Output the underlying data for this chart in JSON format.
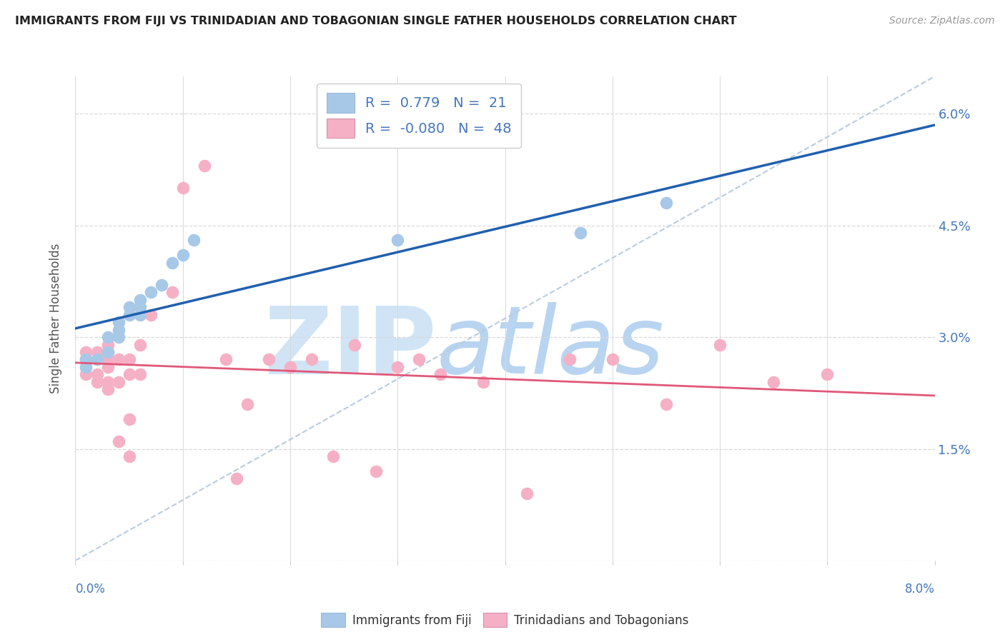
{
  "title": "IMMIGRANTS FROM FIJI VS TRINIDADIAN AND TOBAGONIAN SINGLE FATHER HOUSEHOLDS CORRELATION CHART",
  "source": "Source: ZipAtlas.com",
  "ylabel": "Single Father Households",
  "xlim": [
    0.0,
    0.08
  ],
  "ylim": [
    0.0,
    0.065
  ],
  "fiji_R": 0.779,
  "fiji_N": 21,
  "tnt_R": -0.08,
  "tnt_N": 48,
  "fiji_color": "#a8c8e8",
  "tnt_color": "#f5b0c5",
  "fiji_line_color": "#2060b0",
  "tnt_line_color": "#e05878",
  "dash_line_color": "#b8cce0",
  "grid_color": "#d8d8d8",
  "background_color": "#ffffff",
  "watermark_zip_color": "#d0e4f5",
  "watermark_atlas_color": "#b8d4f0",
  "tick_label_color": "#4477bb",
  "ylabel_color": "#555555",
  "title_color": "#222222",
  "source_color": "#999999",
  "fiji_x": [
    0.001,
    0.001,
    0.002,
    0.003,
    0.003,
    0.004,
    0.004,
    0.004,
    0.005,
    0.005,
    0.006,
    0.006,
    0.006,
    0.007,
    0.008,
    0.009,
    0.01,
    0.011,
    0.03,
    0.047,
    0.055
  ],
  "fiji_y": [
    0.026,
    0.027,
    0.027,
    0.028,
    0.03,
    0.03,
    0.031,
    0.032,
    0.033,
    0.034,
    0.033,
    0.034,
    0.035,
    0.036,
    0.037,
    0.04,
    0.041,
    0.043,
    0.043,
    0.044,
    0.048
  ],
  "tnt_x": [
    0.001,
    0.001,
    0.001,
    0.001,
    0.001,
    0.002,
    0.002,
    0.002,
    0.002,
    0.003,
    0.003,
    0.003,
    0.003,
    0.003,
    0.003,
    0.004,
    0.004,
    0.004,
    0.005,
    0.005,
    0.005,
    0.005,
    0.006,
    0.006,
    0.007,
    0.009,
    0.01,
    0.012,
    0.014,
    0.015,
    0.016,
    0.018,
    0.02,
    0.022,
    0.024,
    0.026,
    0.028,
    0.03,
    0.032,
    0.034,
    0.038,
    0.042,
    0.046,
    0.05,
    0.055,
    0.06,
    0.065,
    0.07
  ],
  "tnt_y": [
    0.025,
    0.026,
    0.027,
    0.027,
    0.028,
    0.024,
    0.025,
    0.027,
    0.028,
    0.023,
    0.024,
    0.026,
    0.027,
    0.028,
    0.029,
    0.016,
    0.024,
    0.027,
    0.014,
    0.019,
    0.025,
    0.027,
    0.025,
    0.029,
    0.033,
    0.036,
    0.05,
    0.053,
    0.027,
    0.011,
    0.021,
    0.027,
    0.026,
    0.027,
    0.014,
    0.029,
    0.012,
    0.026,
    0.027,
    0.025,
    0.024,
    0.009,
    0.027,
    0.027,
    0.021,
    0.029,
    0.024,
    0.025
  ],
  "yticks": [
    0.0,
    0.015,
    0.03,
    0.045,
    0.06
  ],
  "ytick_labels": [
    "",
    "1.5%",
    "3.0%",
    "4.5%",
    "6.0%"
  ]
}
